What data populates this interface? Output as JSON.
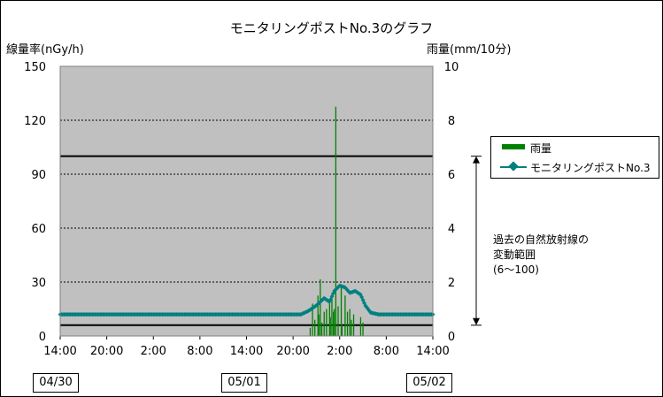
{
  "chart_data": {
    "type": "line",
    "title": "モニタリングポストNo.3のグラフ",
    "ylabel": "線量率(nGy/h)",
    "y2label": "雨量(mm/10分)",
    "ylim": [
      0,
      150
    ],
    "y2lim": [
      0,
      10
    ],
    "yticks": [
      "0",
      "30",
      "60",
      "90",
      "120",
      "150"
    ],
    "y2ticks": [
      "0",
      "2",
      "4",
      "6",
      "8",
      "10"
    ],
    "x_hours_range": [
      0,
      48
    ],
    "xticks": [
      "14:00",
      "20:00",
      "2:00",
      "8:00",
      "14:00",
      "20:00",
      "2:00",
      "8:00",
      "14:00"
    ],
    "date_labels": [
      "04/30",
      "05/01",
      "05/02"
    ],
    "grid": true,
    "reference_lines": [
      6,
      100
    ],
    "annotation": "過去の自然放射線の\n変動範囲\n(6～100)",
    "legend_position": "right",
    "colors": {
      "plot_bg": "#c0c0c0",
      "rain": "#008000",
      "dose": "#008080"
    },
    "series": [
      {
        "name": "雨量",
        "type": "bar",
        "axis": "right",
        "points": [
          [
            32.2,
            0.3
          ],
          [
            32.5,
            1.2
          ],
          [
            32.8,
            0.6
          ],
          [
            33.2,
            1.5
          ],
          [
            33.3,
            0.8
          ],
          [
            33.5,
            2.1
          ],
          [
            33.7,
            0.5
          ],
          [
            34.0,
            0.9
          ],
          [
            34.3,
            1.0
          ],
          [
            34.7,
            1.3
          ],
          [
            34.8,
            0.7
          ],
          [
            35.0,
            1.4
          ],
          [
            35.2,
            0.9
          ],
          [
            35.3,
            1.0
          ],
          [
            35.5,
            8.5
          ],
          [
            35.8,
            1.1
          ],
          [
            36.2,
            1.9
          ],
          [
            36.3,
            0.4
          ],
          [
            36.7,
            1.5
          ],
          [
            37.0,
            0.9
          ],
          [
            37.3,
            1.0
          ],
          [
            37.5,
            0.6
          ],
          [
            37.8,
            0.8
          ],
          [
            38.7,
            0.7
          ],
          [
            39.0,
            0.5
          ]
        ]
      },
      {
        "name": "モニタリングポストNo.3",
        "type": "line",
        "axis": "left",
        "points": [
          [
            0,
            12
          ],
          [
            4,
            12
          ],
          [
            8,
            12
          ],
          [
            12,
            12
          ],
          [
            16,
            12
          ],
          [
            20,
            12
          ],
          [
            24,
            12
          ],
          [
            28,
            12
          ],
          [
            31,
            12
          ],
          [
            32,
            14
          ],
          [
            33,
            17
          ],
          [
            34,
            21
          ],
          [
            34.7,
            19
          ],
          [
            35.3,
            25
          ],
          [
            36,
            28
          ],
          [
            36.7,
            27
          ],
          [
            37.3,
            24
          ],
          [
            38,
            25
          ],
          [
            38.7,
            23
          ],
          [
            39.3,
            17
          ],
          [
            40,
            13
          ],
          [
            41,
            12
          ],
          [
            44,
            12
          ],
          [
            48,
            12
          ]
        ]
      }
    ]
  }
}
